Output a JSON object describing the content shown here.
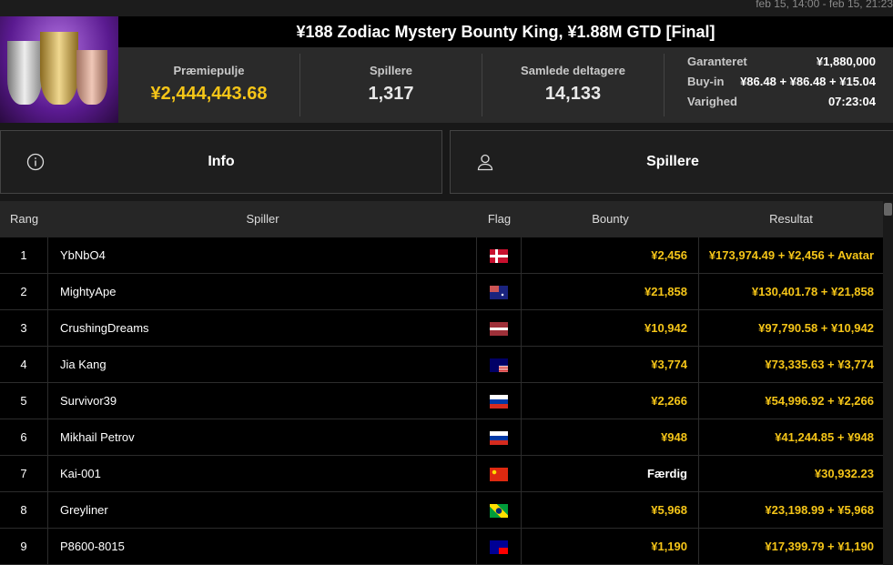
{
  "date_range": "feb 15, 14:00 - feb 15, 21:23",
  "title": "¥188 Zodiac Mystery Bounty King, ¥1.88M GTD [Final]",
  "stats": [
    {
      "label": "Præmiepulje",
      "value": "¥2,444,443.68"
    },
    {
      "label": "Spillere",
      "value": "1,317"
    },
    {
      "label": "Samlede deltagere",
      "value": "14,133"
    }
  ],
  "info": [
    {
      "label": "Garanteret",
      "value": "¥1,880,000"
    },
    {
      "label": "Buy-in",
      "value": "¥86.48 + ¥86.48 + ¥15.04"
    },
    {
      "label": "Varighed",
      "value": "07:23:04"
    }
  ],
  "tabs": [
    {
      "label": "Info",
      "icon": "info-icon"
    },
    {
      "label": "Spillere",
      "icon": "user-icon"
    }
  ],
  "columns": [
    "Rang",
    "Spiller",
    "Flag",
    "Bounty",
    "Resultat"
  ],
  "rows": [
    {
      "rank": "1",
      "player": "YbNbO4",
      "flag": "denmark",
      "bounty": "¥2,456",
      "result": "¥173,974.49 + ¥2,456 + Avatar"
    },
    {
      "rank": "2",
      "player": "MightyApe",
      "flag": "australia",
      "bounty": "¥21,858",
      "result": "¥130,401.78 + ¥21,858"
    },
    {
      "rank": "3",
      "player": "CrushingDreams",
      "flag": "latvia",
      "bounty": "¥10,942",
      "result": "¥97,790.58 + ¥10,942"
    },
    {
      "rank": "4",
      "player": "Jia Kang",
      "flag": "malaysia",
      "bounty": "¥3,774",
      "result": "¥73,335.63 + ¥3,774"
    },
    {
      "rank": "5",
      "player": "Survivor39",
      "flag": "russia",
      "bounty": "¥2,266",
      "result": "¥54,996.92 + ¥2,266"
    },
    {
      "rank": "6",
      "player": "Mikhail Petrov",
      "flag": "russia",
      "bounty": "¥948",
      "result": "¥41,244.85 + ¥948"
    },
    {
      "rank": "7",
      "player": "Kai-001",
      "flag": "china",
      "bounty": "Færdig",
      "result": "¥30,932.23"
    },
    {
      "rank": "8",
      "player": "Greyliner",
      "flag": "brazil",
      "bounty": "¥5,968",
      "result": "¥23,198.99 + ¥5,968"
    },
    {
      "rank": "9",
      "player": "P8600-8015",
      "flag": "taiwan",
      "bounty": "¥1,190",
      "result": "¥17,399.79 + ¥1,190"
    }
  ],
  "colors": {
    "gold": "#f5c518"
  }
}
